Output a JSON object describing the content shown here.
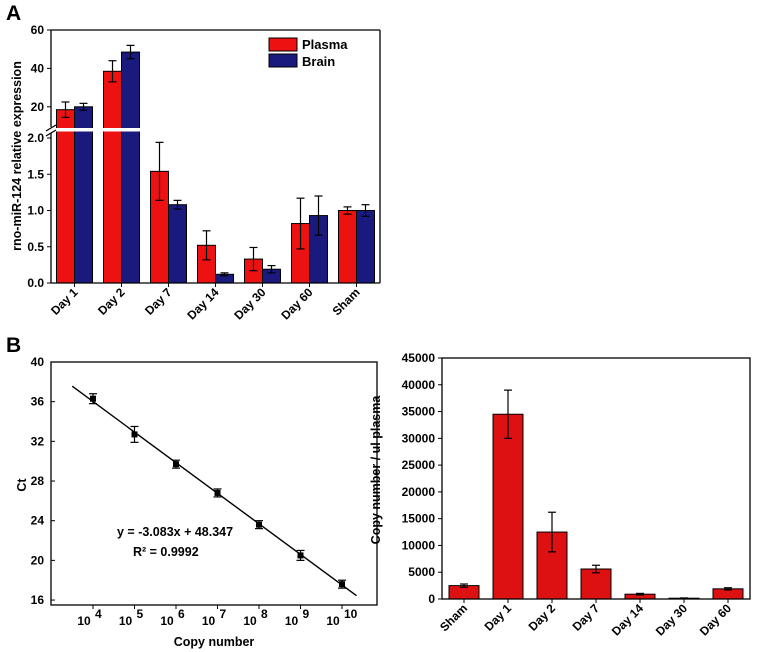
{
  "colors": {
    "plasma": "#ee1111",
    "brain": "#1a1a7e",
    "bar_c": "#dd1111"
  },
  "panel_a_label": "A",
  "panel_b_label": "B",
  "chart_data": [
    {
      "id": "chartA",
      "type": "bar",
      "title": "",
      "xlabel": "",
      "ylabel": "rno-miR-124 relative expression",
      "categories": [
        "Day 1",
        "Day 2",
        "Day 7",
        "Day 14",
        "Day 30",
        "Day 60",
        "Sham"
      ],
      "series": [
        {
          "name": "Plasma",
          "values": [
            18.5,
            38.5,
            1.54,
            0.52,
            0.33,
            0.82,
            1.0
          ],
          "errors": [
            4,
            5.5,
            0.4,
            0.2,
            0.16,
            0.35,
            0.05
          ]
        },
        {
          "name": "Brain",
          "values": [
            20,
            48.5,
            1.08,
            0.12,
            0.19,
            0.93,
            1.0
          ],
          "errors": [
            1.8,
            3.5,
            0.06,
            0.02,
            0.05,
            0.27,
            0.08
          ]
        }
      ],
      "y_axis_broken": true,
      "ylim_lower": [
        0,
        2.0
      ],
      "yticks_lower": [
        "0.0",
        "0.5",
        "1.0",
        "1.5",
        "2.0"
      ],
      "ylim_upper": [
        10,
        60
      ],
      "yticks_upper": [
        "20",
        "40",
        "60"
      ],
      "legend": "top-right"
    },
    {
      "id": "chartB1",
      "type": "scatter",
      "title": "",
      "xlabel": "Copy number",
      "ylabel": "Ct",
      "x_log10": [
        4,
        5,
        6,
        7,
        8,
        9,
        10
      ],
      "xtick_base": "10",
      "xtick_exponents": [
        "4",
        "5",
        "6",
        "7",
        "8",
        "9",
        "10"
      ],
      "y": [
        36.3,
        32.7,
        29.7,
        26.8,
        23.6,
        20.5,
        17.6
      ],
      "y_errors": [
        0.5,
        0.8,
        0.4,
        0.4,
        0.4,
        0.5,
        0.4
      ],
      "ylim": [
        15.5,
        40
      ],
      "yticks": [
        "16",
        "20",
        "24",
        "28",
        "32",
        "36",
        "40"
      ],
      "fit": {
        "slope": -3.083,
        "intercept": 48.347,
        "x_range": [
          3.5,
          10.35
        ]
      },
      "equation": "y = -3.083x + 48.347",
      "r2": "R² = 0.9992"
    },
    {
      "id": "chartB2",
      "type": "bar",
      "title": "",
      "xlabel": "",
      "ylabel": "Copy number / ul plasma",
      "categories": [
        "Sham",
        "Day 1",
        "Day 2",
        "Day 7",
        "Day 14",
        "Day 30",
        "Day 60"
      ],
      "values": [
        2500,
        34500,
        12500,
        5600,
        900,
        150,
        1900
      ],
      "errors": [
        300,
        4500,
        3700,
        700,
        150,
        50,
        200
      ],
      "ylim": [
        0,
        45000
      ],
      "yticks": [
        "0",
        "5000",
        "10000",
        "15000",
        "20000",
        "25000",
        "30000",
        "35000",
        "40000",
        "45000"
      ]
    }
  ]
}
